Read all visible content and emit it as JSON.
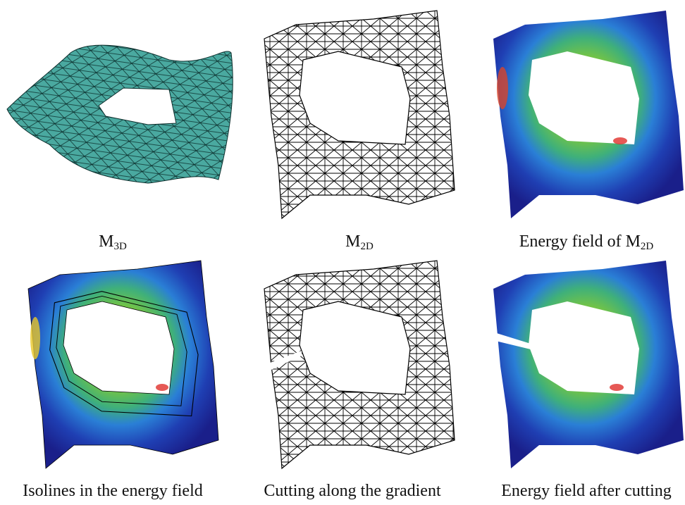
{
  "panels": [
    {
      "caption": {
        "text": "M",
        "sub": "3D"
      }
    },
    {
      "caption": {
        "text": "M",
        "sub": "2D"
      }
    },
    {
      "caption": {
        "text": "Energy field of M",
        "sub": "2D"
      }
    },
    {
      "caption": {
        "text": "Isolines in the energy field"
      }
    },
    {
      "caption": {
        "text": "Cutting along the gradient"
      }
    },
    {
      "caption": {
        "text": "Energy field after cutting"
      }
    }
  ]
}
